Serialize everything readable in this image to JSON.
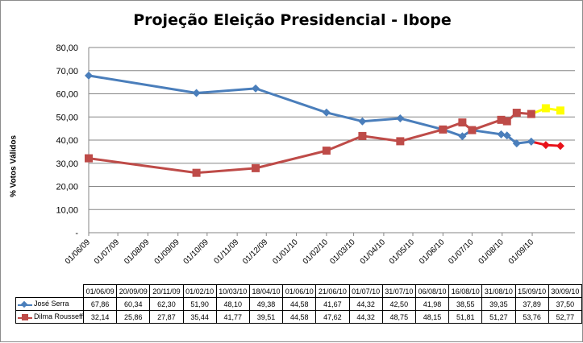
{
  "chart_data": {
    "type": "line",
    "title": "Projeção Eleição Presidencial - Ibope",
    "ylabel": "% Votos Válidos",
    "ylim": [
      0,
      80
    ],
    "yticks": [
      "-",
      "10,00",
      "20,00",
      "30,00",
      "40,00",
      "50,00",
      "60,00",
      "70,00",
      "80,00"
    ],
    "xtick_labels": [
      "01/06/09",
      "01/07/09",
      "01/08/09",
      "01/09/09",
      "01/10/09",
      "01/11/09",
      "01/12/09",
      "01/01/10",
      "01/02/10",
      "01/03/10",
      "01/04/10",
      "01/05/10",
      "01/06/10",
      "01/07/10",
      "01/08/10",
      "01/09/10"
    ],
    "grid": true,
    "dates": [
      "01/06/09",
      "20/09/09",
      "20/11/09",
      "01/02/10",
      "10/03/10",
      "18/04/10",
      "01/06/10",
      "21/06/10",
      "01/07/10",
      "31/07/10",
      "06/08/10",
      "16/08/10",
      "31/08/10",
      "15/09/10",
      "30/09/10"
    ],
    "series": [
      {
        "name": "José Serra",
        "color": "#4a7ebb",
        "marker": "diamond",
        "display": [
          "67,86",
          "60,34",
          "62,30",
          "51,90",
          "48,10",
          "49,38",
          "44,58",
          "41,67",
          "44,32",
          "42,50",
          "41,98",
          "38,55",
          "39,35",
          "37,89",
          "37,50"
        ],
        "values": [
          67.86,
          60.34,
          62.3,
          51.9,
          48.1,
          49.38,
          44.58,
          41.67,
          44.32,
          42.5,
          41.98,
          38.55,
          39.35,
          37.89,
          37.5
        ]
      },
      {
        "name": "Dilma Rousseff",
        "color": "#be4b48",
        "marker": "square",
        "display": [
          "32,14",
          "25,86",
          "27,87",
          "35,44",
          "41,77",
          "39,51",
          "44,58",
          "47,62",
          "44,32",
          "48,75",
          "48,15",
          "51,81",
          "51,27",
          "53,76",
          "52,77"
        ],
        "values": [
          32.14,
          25.86,
          27.87,
          35.44,
          41.77,
          39.51,
          44.58,
          47.62,
          44.32,
          48.75,
          48.15,
          51.81,
          51.27,
          53.76,
          52.77
        ]
      }
    ],
    "projection_colors": {
      "serra": "#e8121a",
      "dilma": "#ffff00"
    }
  }
}
